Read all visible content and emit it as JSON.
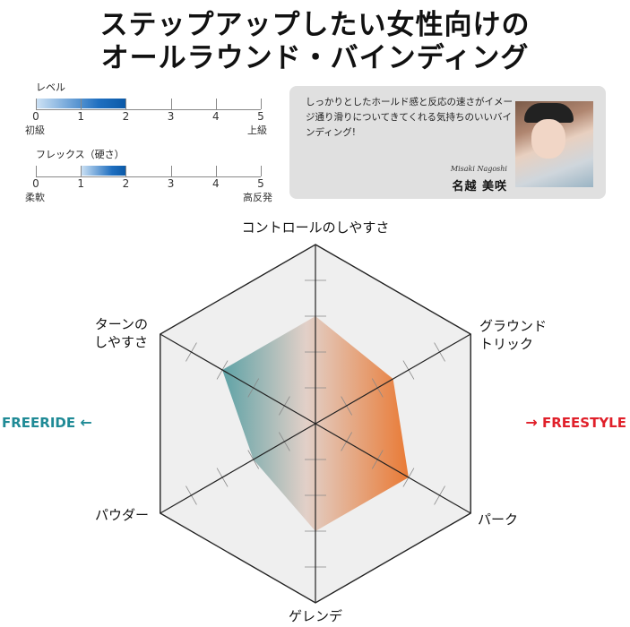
{
  "title": {
    "line1": "ステップアップしたい女性向けの",
    "line2": "オールラウンド・バインディング"
  },
  "scales": [
    {
      "label": "レベル",
      "min": 0,
      "max": 5,
      "ticks": [
        "0",
        "1",
        "2",
        "3",
        "4",
        "5"
      ],
      "min_label": "初級",
      "max_label": "上級",
      "range": [
        0,
        2
      ]
    },
    {
      "label": "フレックス（硬さ）",
      "min": 0,
      "max": 5,
      "ticks": [
        "0",
        "1",
        "2",
        "3",
        "4",
        "5"
      ],
      "min_label": "柔軟",
      "max_label": "高反発",
      "range": [
        1,
        2
      ]
    }
  ],
  "comment": {
    "text": "しっかりとしたホールド感と反応の速さがイメージ通り滑りについてきてくれる気持ちのいいバインディング!",
    "romaji": "Misaki Nagoshi",
    "name": "名越 美咲"
  },
  "side_labels": {
    "left": "FREERIDE",
    "left_arrow": "arrow-left-icon",
    "left_color": "#1f8a96",
    "right": "FREESTYLE",
    "right_arrow": "arrow-right-icon",
    "right_color": "#e0202a"
  },
  "chart_data": {
    "type": "radar",
    "max": 5,
    "levels": 5,
    "axes": [
      "コントロールのしやすさ",
      "グラウンドトリック",
      "パーク",
      "ゲレンデ",
      "パウダー",
      "ターンのしやすさ"
    ],
    "axis_label_lines": [
      [
        "コントロールのしやすさ"
      ],
      [
        "グラウンド",
        "トリック"
      ],
      [
        "パーク"
      ],
      [
        "ゲレンデ"
      ],
      [
        "パウダー"
      ],
      [
        "ターンの",
        "しやすさ"
      ]
    ],
    "values": [
      3,
      2.5,
      3,
      3,
      2,
      3
    ],
    "fill_gradient": [
      "#5ea2a6",
      "#e2d0c8",
      "#e97a35"
    ]
  }
}
